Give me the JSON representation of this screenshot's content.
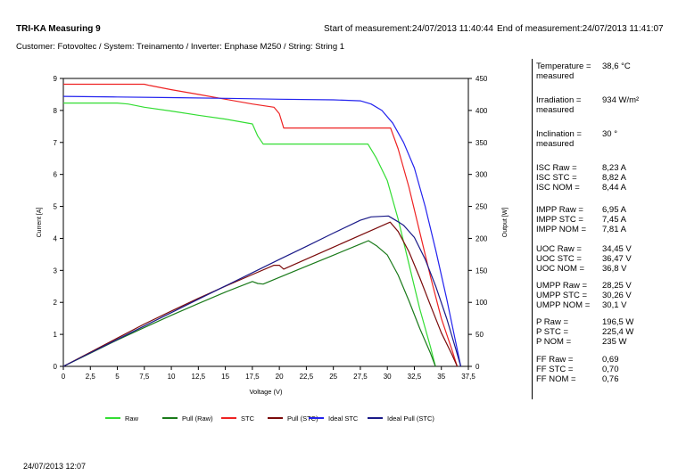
{
  "header": {
    "title": "TRI-KA Measuring 9",
    "start": "Start of measurement:24/07/2013 11:40:44",
    "end": "End of measurement:24/07/2013 11:41:07",
    "subtitle": "Customer: Fotovoltec / System: Treinamento / Inverter: Enphase M250 / String: String 1"
  },
  "panel": {
    "temperature_label": "Temperature =",
    "temperature_label2": "measured",
    "temperature_value": "38,6 °C",
    "irradiation_label": "Irradiation =",
    "irradiation_label2": "measured",
    "irradiation_value": "934 W/m²",
    "inclination_label": "Inclination =",
    "inclination_label2": "measured",
    "inclination_value": "30 °",
    "groups": [
      [
        [
          "ISC Raw =",
          "8,23 A"
        ],
        [
          "ISC STC =",
          "8,82 A"
        ],
        [
          "ISC NOM =",
          "8,44 A"
        ]
      ],
      [
        [
          "IMPP Raw =",
          "6,95 A"
        ],
        [
          "IMPP STC =",
          "7,45 A"
        ],
        [
          "IMPP NOM =",
          "7,81 A"
        ]
      ],
      [
        [
          "UOC Raw =",
          "34,45 V"
        ],
        [
          "UOC STC =",
          "36,47 V"
        ],
        [
          "UOC NOM =",
          "36,8 V"
        ]
      ],
      [
        [
          "UMPP Raw =",
          "28,25 V"
        ],
        [
          "UMPP STC =",
          "30,26 V"
        ],
        [
          "UMPP NOM =",
          "30,1 V"
        ]
      ],
      [
        [
          "P Raw =",
          "196,5 W"
        ],
        [
          "P STC =",
          "225,4 W"
        ],
        [
          "P NOM =",
          "235 W"
        ]
      ],
      [
        [
          "FF Raw =",
          "0,69"
        ],
        [
          "FF STC =",
          "0,70"
        ],
        [
          "FF NOM =",
          "0,76"
        ]
      ]
    ]
  },
  "footer": {
    "date": "24/07/2013 12:07"
  },
  "chart_data": {
    "type": "line",
    "xlabel": "Voltage (V)",
    "ylabel": "Current [A]",
    "y2label": "Output [W]",
    "xlim": [
      0,
      37.5
    ],
    "ylim": [
      0,
      9
    ],
    "y2lim": [
      0,
      450
    ],
    "x_ticks": [
      "0",
      "2,5",
      "5",
      "7,5",
      "10",
      "12,5",
      "15",
      "17,5",
      "20",
      "22,5",
      "25",
      "27,5",
      "30",
      "32,5",
      "35",
      "37,5"
    ],
    "y_ticks": [
      "0",
      "1",
      "2",
      "3",
      "4",
      "5",
      "6",
      "7",
      "8",
      "9"
    ],
    "y2_ticks": [
      "0",
      "50",
      "100",
      "150",
      "200",
      "250",
      "300",
      "350",
      "400",
      "450"
    ],
    "grid": false,
    "legend_position": "bottom",
    "series": [
      {
        "name": "Raw",
        "axis": "left",
        "color": "#33dd33",
        "points": [
          [
            0,
            8.23
          ],
          [
            2.5,
            8.23
          ],
          [
            5,
            8.23
          ],
          [
            6,
            8.2
          ],
          [
            7.5,
            8.1
          ],
          [
            10,
            7.98
          ],
          [
            12.5,
            7.85
          ],
          [
            15,
            7.73
          ],
          [
            17.5,
            7.58
          ],
          [
            18,
            7.2
          ],
          [
            18.5,
            6.95
          ],
          [
            20,
            6.95
          ],
          [
            22.5,
            6.95
          ],
          [
            25,
            6.95
          ],
          [
            27.5,
            6.95
          ],
          [
            28.2,
            6.95
          ],
          [
            29,
            6.5
          ],
          [
            30,
            5.8
          ],
          [
            31,
            4.6
          ],
          [
            32,
            3.2
          ],
          [
            33,
            1.8
          ],
          [
            34,
            0.6
          ],
          [
            34.45,
            0
          ]
        ]
      },
      {
        "name": "Pull (Raw)",
        "axis": "right",
        "color": "#1a7a1a",
        "points": [
          [
            0,
            0
          ],
          [
            2.5,
            20.6
          ],
          [
            5,
            41.2
          ],
          [
            7.5,
            60.8
          ],
          [
            10,
            79.8
          ],
          [
            12.5,
            98.1
          ],
          [
            15,
            116
          ],
          [
            17.5,
            132.7
          ],
          [
            18,
            129.6
          ],
          [
            18.5,
            128.6
          ],
          [
            20,
            139
          ],
          [
            22.5,
            156.4
          ],
          [
            25,
            173.8
          ],
          [
            27.5,
            191.1
          ],
          [
            28.25,
            196.5
          ],
          [
            29,
            188.5
          ],
          [
            30,
            174
          ],
          [
            31,
            142.6
          ],
          [
            32,
            102.4
          ],
          [
            33,
            59.4
          ],
          [
            34,
            20.4
          ],
          [
            34.45,
            0
          ]
        ]
      },
      {
        "name": "STC",
        "axis": "left",
        "color": "#ee2222",
        "points": [
          [
            0,
            8.82
          ],
          [
            2.5,
            8.82
          ],
          [
            5,
            8.82
          ],
          [
            7.5,
            8.82
          ],
          [
            8,
            8.78
          ],
          [
            10,
            8.65
          ],
          [
            12.5,
            8.5
          ],
          [
            15,
            8.35
          ],
          [
            17.5,
            8.2
          ],
          [
            19.5,
            8.1
          ],
          [
            20,
            7.9
          ],
          [
            20.4,
            7.45
          ],
          [
            22.5,
            7.45
          ],
          [
            25,
            7.45
          ],
          [
            27.5,
            7.45
          ],
          [
            30,
            7.45
          ],
          [
            30.3,
            7.45
          ],
          [
            31,
            6.8
          ],
          [
            32,
            5.6
          ],
          [
            33,
            4.2
          ],
          [
            34,
            2.8
          ],
          [
            35,
            1.5
          ],
          [
            36,
            0.5
          ],
          [
            36.47,
            0
          ]
        ]
      },
      {
        "name": "Pull (STC)",
        "axis": "right",
        "color": "#7a0a0a",
        "points": [
          [
            0,
            0
          ],
          [
            2.5,
            22
          ],
          [
            5,
            44.1
          ],
          [
            7.5,
            66.2
          ],
          [
            10,
            86.5
          ],
          [
            12.5,
            106.3
          ],
          [
            15,
            125.3
          ],
          [
            17.5,
            143.5
          ],
          [
            19.5,
            158
          ],
          [
            20,
            158
          ],
          [
            20.4,
            152
          ],
          [
            22.5,
            167.6
          ],
          [
            25,
            186.3
          ],
          [
            27.5,
            204.9
          ],
          [
            30,
            223.5
          ],
          [
            30.26,
            225.4
          ],
          [
            31,
            210.8
          ],
          [
            32,
            179.2
          ],
          [
            33,
            138.6
          ],
          [
            34,
            95.2
          ],
          [
            35,
            52.5
          ],
          [
            36,
            18
          ],
          [
            36.47,
            0
          ]
        ]
      },
      {
        "name": "Ideal STC",
        "axis": "left",
        "color": "#2222ee",
        "points": [
          [
            0,
            8.44
          ],
          [
            5,
            8.42
          ],
          [
            10,
            8.4
          ],
          [
            15,
            8.38
          ],
          [
            20,
            8.35
          ],
          [
            25,
            8.33
          ],
          [
            27.5,
            8.3
          ],
          [
            28.5,
            8.2
          ],
          [
            29.5,
            8
          ],
          [
            30.5,
            7.6
          ],
          [
            31.5,
            7
          ],
          [
            32.5,
            6.2
          ],
          [
            33.5,
            5
          ],
          [
            34.5,
            3.6
          ],
          [
            35.5,
            2.1
          ],
          [
            36.3,
            0.8
          ],
          [
            36.8,
            0
          ]
        ]
      },
      {
        "name": "Ideal Pull (STC)",
        "axis": "right",
        "color": "#1a1a88",
        "points": [
          [
            0,
            0
          ],
          [
            2.5,
            21.1
          ],
          [
            5,
            42.1
          ],
          [
            7.5,
            63.1
          ],
          [
            10,
            84
          ],
          [
            12.5,
            104.9
          ],
          [
            15,
            125.7
          ],
          [
            17.5,
            146.4
          ],
          [
            20,
            167
          ],
          [
            22.5,
            187.5
          ],
          [
            25,
            208.3
          ],
          [
            27.5,
            228.3
          ],
          [
            28.5,
            233.7
          ],
          [
            30.1,
            235
          ],
          [
            31,
            226
          ],
          [
            31.5,
            220.5
          ],
          [
            32.5,
            201.5
          ],
          [
            33.5,
            167.5
          ],
          [
            34.5,
            124.2
          ],
          [
            35.5,
            74.6
          ],
          [
            36.3,
            29
          ],
          [
            36.8,
            0
          ]
        ]
      }
    ]
  }
}
